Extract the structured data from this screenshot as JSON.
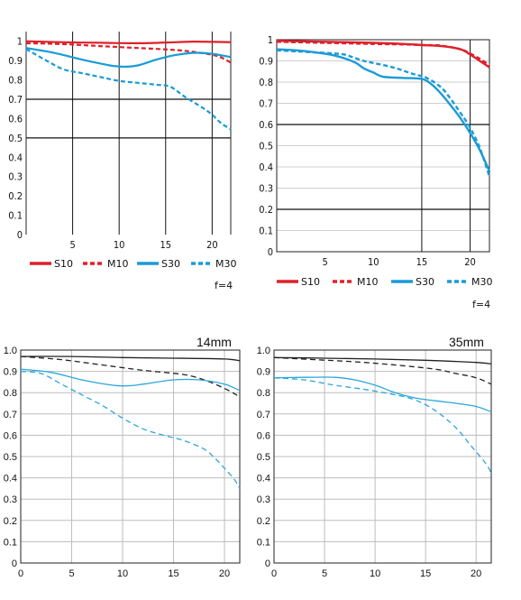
{
  "chart_data": [
    {
      "type": "line",
      "xlim": [
        0,
        22
      ],
      "ylim": [
        0,
        1.05
      ],
      "xticks": [
        "5",
        "10",
        "15",
        "20"
      ],
      "yticks": [
        "0",
        "0.1",
        "0.2",
        "0.3",
        "0.4",
        "0.5",
        "0.6",
        "0.7",
        "0.8",
        "0.9",
        "1"
      ],
      "legend": [
        "S10",
        "M10",
        "S30",
        "M30"
      ],
      "note": "f=4",
      "series": [
        {
          "name": "S10",
          "color": "#e0202a",
          "dash": false,
          "x": [
            0,
            4,
            8,
            12,
            16,
            18,
            20,
            22
          ],
          "y": [
            1.0,
            0.995,
            0.992,
            0.99,
            0.995,
            0.998,
            0.997,
            0.995
          ]
        },
        {
          "name": "M10",
          "color": "#e0202a",
          "dash": true,
          "x": [
            0,
            4,
            8,
            12,
            16,
            18,
            20,
            21,
            22
          ],
          "y": [
            0.99,
            0.985,
            0.975,
            0.965,
            0.955,
            0.945,
            0.93,
            0.915,
            0.89
          ]
        },
        {
          "name": "S30",
          "color": "#1a9bd7",
          "dash": false,
          "x": [
            0,
            3,
            6,
            9,
            10.5,
            12,
            14,
            16,
            18,
            20,
            22
          ],
          "y": [
            0.965,
            0.94,
            0.905,
            0.875,
            0.868,
            0.875,
            0.905,
            0.928,
            0.94,
            0.935,
            0.918
          ]
        },
        {
          "name": "M30",
          "color": "#1a9bd7",
          "dash": true,
          "x": [
            0,
            2,
            4,
            6,
            8,
            10,
            12,
            14,
            15.5,
            17,
            19,
            20,
            21,
            22
          ],
          "y": [
            0.96,
            0.905,
            0.855,
            0.835,
            0.815,
            0.795,
            0.785,
            0.775,
            0.765,
            0.715,
            0.655,
            0.62,
            0.575,
            0.545
          ]
        }
      ]
    },
    {
      "type": "line",
      "xlim": [
        0,
        22
      ],
      "ylim": [
        0,
        1.0
      ],
      "xticks": [
        "5",
        "10",
        "15",
        "20"
      ],
      "yticks": [
        "0",
        "0.1",
        "0.2",
        "0.3",
        "0.4",
        "0.5",
        "0.6",
        "0.7",
        "0.8",
        "0.9",
        "1"
      ],
      "legend": [
        "S10",
        "M10",
        "S30",
        "M30"
      ],
      "note": "f=4",
      "series": [
        {
          "name": "S10",
          "color": "#e0202a",
          "dash": false,
          "x": [
            0,
            5,
            10,
            13,
            15,
            17,
            19,
            20,
            21,
            22
          ],
          "y": [
            0.995,
            0.99,
            0.985,
            0.98,
            0.975,
            0.97,
            0.955,
            0.93,
            0.9,
            0.87
          ]
        },
        {
          "name": "M10",
          "color": "#e0202a",
          "dash": true,
          "x": [
            0,
            5,
            10,
            13,
            15,
            17,
            19,
            20,
            21,
            22
          ],
          "y": [
            0.99,
            0.985,
            0.98,
            0.978,
            0.975,
            0.972,
            0.955,
            0.935,
            0.91,
            0.88
          ]
        },
        {
          "name": "S30",
          "color": "#1a9bd7",
          "dash": false,
          "x": [
            0,
            2,
            4,
            6,
            8,
            9,
            10,
            11,
            13,
            15,
            16,
            17,
            18,
            19,
            20,
            21,
            22
          ],
          "y": [
            0.955,
            0.95,
            0.94,
            0.925,
            0.895,
            0.865,
            0.845,
            0.825,
            0.82,
            0.815,
            0.79,
            0.745,
            0.69,
            0.63,
            0.56,
            0.48,
            0.38
          ]
        },
        {
          "name": "M30",
          "color": "#1a9bd7",
          "dash": true,
          "x": [
            0,
            2,
            4,
            6,
            7,
            8,
            9,
            10,
            12,
            14,
            15.5,
            17,
            18,
            19,
            20,
            21,
            22
          ],
          "y": [
            0.95,
            0.945,
            0.94,
            0.935,
            0.93,
            0.915,
            0.9,
            0.89,
            0.87,
            0.84,
            0.82,
            0.775,
            0.72,
            0.655,
            0.585,
            0.49,
            0.355
          ]
        }
      ]
    },
    {
      "type": "line",
      "title": "14mm",
      "xlim": [
        0,
        21.5
      ],
      "ylim": [
        0,
        1.0
      ],
      "xticks": [
        "0",
        "5",
        "10",
        "15",
        "20"
      ],
      "yticks": [
        "0",
        "0.1",
        "0.2",
        "0.3",
        "0.4",
        "0.5",
        "0.6",
        "0.7",
        "0.8",
        "0.9",
        "1.0"
      ],
      "series": [
        {
          "color": "#222222",
          "dash": false,
          "x": [
            0,
            5,
            10,
            15,
            20,
            21.5
          ],
          "y": [
            0.97,
            0.97,
            0.965,
            0.962,
            0.958,
            0.95
          ]
        },
        {
          "color": "#222222",
          "dash": true,
          "x": [
            0,
            4,
            8,
            12,
            16,
            18,
            20,
            21.5
          ],
          "y": [
            0.97,
            0.955,
            0.93,
            0.905,
            0.885,
            0.86,
            0.82,
            0.78
          ]
        },
        {
          "color": "#2aa6dd",
          "dash": false,
          "x": [
            0,
            3,
            6,
            9,
            10.5,
            12,
            15,
            17.5,
            20,
            21.5
          ],
          "y": [
            0.91,
            0.895,
            0.86,
            0.835,
            0.832,
            0.84,
            0.86,
            0.86,
            0.84,
            0.81
          ]
        },
        {
          "color": "#2aa6dd",
          "dash": true,
          "x": [
            0,
            2,
            4,
            6,
            8,
            10,
            12,
            14,
            16,
            18,
            19,
            20,
            21,
            21.5
          ],
          "y": [
            0.9,
            0.89,
            0.84,
            0.79,
            0.74,
            0.68,
            0.63,
            0.6,
            0.575,
            0.535,
            0.495,
            0.445,
            0.39,
            0.35
          ]
        }
      ]
    },
    {
      "type": "line",
      "title": "35mm",
      "xlim": [
        0,
        21.5
      ],
      "ylim": [
        0,
        1.0
      ],
      "xticks": [
        "0",
        "5",
        "10",
        "15",
        "20"
      ],
      "yticks": [
        "0",
        "0.1",
        "0.2",
        "0.3",
        "0.4",
        "0.5",
        "0.6",
        "0.7",
        "0.8",
        "0.9",
        "1.0"
      ],
      "series": [
        {
          "color": "#222222",
          "dash": false,
          "x": [
            0,
            5,
            10,
            15,
            20,
            21.5
          ],
          "y": [
            0.965,
            0.962,
            0.958,
            0.952,
            0.942,
            0.935
          ]
        },
        {
          "color": "#222222",
          "dash": true,
          "x": [
            0,
            4,
            8,
            12,
            16,
            18,
            20,
            21.5
          ],
          "y": [
            0.965,
            0.955,
            0.945,
            0.93,
            0.91,
            0.89,
            0.87,
            0.84
          ]
        },
        {
          "color": "#2aa6dd",
          "dash": false,
          "x": [
            0,
            3,
            6,
            8,
            10,
            12,
            14,
            16,
            18,
            20,
            21.5
          ],
          "y": [
            0.87,
            0.872,
            0.872,
            0.86,
            0.835,
            0.8,
            0.775,
            0.762,
            0.75,
            0.735,
            0.71
          ]
        },
        {
          "color": "#2aa6dd",
          "dash": true,
          "x": [
            0,
            3,
            6,
            9,
            12,
            14,
            16,
            18,
            19.5,
            21,
            21.5
          ],
          "y": [
            0.87,
            0.86,
            0.835,
            0.815,
            0.79,
            0.765,
            0.715,
            0.635,
            0.55,
            0.465,
            0.42
          ]
        }
      ]
    }
  ]
}
